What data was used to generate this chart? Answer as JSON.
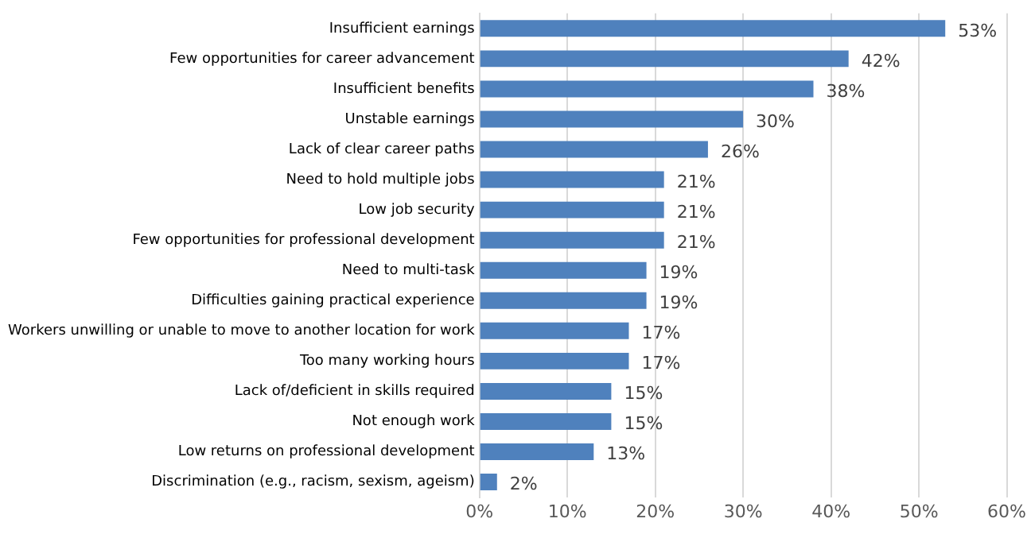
{
  "chart_data": {
    "type": "bar",
    "orientation": "horizontal",
    "categories": [
      "Insufficient earnings",
      "Few opportunities for career advancement",
      "Insufficient benefits",
      "Unstable earnings",
      "Lack of clear career paths",
      "Need to hold multiple jobs",
      "Low job security",
      "Few opportunities for professional development",
      "Need to multi-task",
      "Difficulties gaining practical experience",
      "Workers unwilling or unable to move to another location for work",
      "Too many working hours",
      "Lack of/deficient in skills required",
      "Not enough work",
      "Low returns on professional development",
      "Discrimination (e.g., racism, sexism, ageism)"
    ],
    "values": [
      53,
      42,
      38,
      30,
      26,
      21,
      21,
      21,
      19,
      19,
      17,
      17,
      15,
      15,
      13,
      2
    ],
    "value_labels": [
      "53%",
      "42%",
      "38%",
      "30%",
      "26%",
      "21%",
      "21%",
      "21%",
      "19%",
      "19%",
      "17%",
      "17%",
      "15%",
      "15%",
      "13%",
      "2%"
    ],
    "color": "#4f81bd",
    "xlim": [
      0,
      60
    ],
    "xticks": [
      {
        "value": 0,
        "label": "0%"
      },
      {
        "value": 10,
        "label": "10%"
      },
      {
        "value": 20,
        "label": "20%"
      },
      {
        "value": 30,
        "label": "30%"
      },
      {
        "value": 40,
        "label": "40%"
      },
      {
        "value": 50,
        "label": "50%"
      },
      {
        "value": 60,
        "label": "60%"
      }
    ],
    "grid": "x",
    "legend": false
  }
}
